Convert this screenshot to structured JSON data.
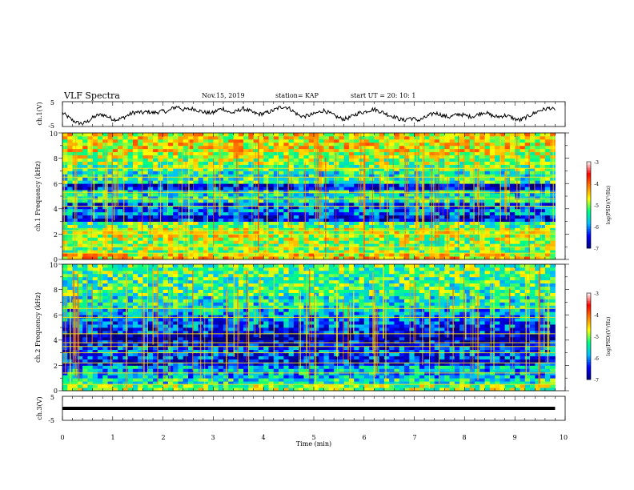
{
  "header": {
    "title": "VLF Spectra",
    "date": "Nov.15, 2019",
    "station": "station= KAP",
    "start": "start  UT  =   20: 10: 1"
  },
  "chart_data": [
    {
      "type": "line",
      "name": "ch.1 waveform",
      "ylabel": "ch.1(V)",
      "ylim": [
        -5,
        5
      ],
      "yticks": [
        "5",
        "-5"
      ],
      "xlim": [
        0,
        10
      ],
      "x": [
        0,
        0.1,
        0.2,
        0.3,
        0.4,
        0.5,
        0.6,
        0.7,
        0.8,
        0.9,
        1.0,
        1.1,
        1.2,
        1.3,
        1.4,
        1.5,
        1.6,
        1.7,
        1.8,
        1.9,
        2.0,
        2.1,
        2.2,
        2.3,
        2.4,
        2.5,
        2.6,
        2.7,
        2.8,
        2.9,
        3.0,
        3.1,
        3.2,
        3.3,
        3.4,
        3.5,
        3.6,
        3.7,
        3.8,
        3.9,
        4.0,
        4.1,
        4.2,
        4.3,
        4.4,
        4.5,
        4.6,
        4.7,
        4.8,
        4.9,
        5.0,
        5.1,
        5.2,
        5.3,
        5.4,
        5.5,
        5.6,
        5.7,
        5.8,
        5.9,
        6.0,
        6.1,
        6.2,
        6.3,
        6.4,
        6.5,
        6.6,
        6.7,
        6.8,
        6.9,
        7.0,
        7.1,
        7.2,
        7.3,
        7.4,
        7.5,
        7.6,
        7.7,
        7.8,
        7.9,
        8.0,
        8.1,
        8.2,
        8.3,
        8.4,
        8.5,
        8.6,
        8.7,
        8.8,
        8.9,
        9.0,
        9.1,
        9.2,
        9.3,
        9.4,
        9.5,
        9.6,
        9.7,
        9.8
      ],
      "y": [
        0.5,
        -1.0,
        -2.5,
        -3.5,
        -3.8,
        -3.0,
        -1.5,
        -0.5,
        -0.2,
        -1.0,
        -2.0,
        -2.2,
        -1.5,
        -0.5,
        0.5,
        0.8,
        0.5,
        1.0,
        0.5,
        0.8,
        1.2,
        1.0,
        2.5,
        3.0,
        1.8,
        2.0,
        2.2,
        1.5,
        0.8,
        0.5,
        0.5,
        1.8,
        2.2,
        0.8,
        0.5,
        1.5,
        2.2,
        1.5,
        0.5,
        0.0,
        0.2,
        0.8,
        1.5,
        2.5,
        3.0,
        2.5,
        1.0,
        -0.5,
        -1.0,
        -0.5,
        0.0,
        0.8,
        1.5,
        0.5,
        -0.5,
        -1.5,
        -2.0,
        -1.5,
        -0.5,
        0.5,
        0.8,
        1.5,
        2.0,
        1.2,
        0.5,
        -0.5,
        -1.0,
        -2.0,
        -2.5,
        -1.5,
        -2.0,
        -2.5,
        -1.5,
        -0.5,
        0.5,
        0.0,
        -0.8,
        -1.2,
        -0.5,
        0.0,
        -0.5,
        -1.0,
        -0.8,
        0.2,
        0.8,
        -0.2,
        -1.0,
        -1.0,
        -0.5,
        -1.0,
        -2.0,
        -2.5,
        -1.5,
        -0.5,
        0.5,
        1.5,
        2.0,
        2.5,
        1.5
      ]
    },
    {
      "type": "heatmap",
      "name": "ch.1 spectrogram",
      "ylabel": "ch.1 Frequency (kHz)",
      "ylim": [
        0,
        10
      ],
      "yticks": [
        "0",
        "2",
        "4",
        "6",
        "8",
        "10"
      ],
      "xlim": [
        0,
        10
      ],
      "colorbar": {
        "label": "log(PSD)(V²/Hz)",
        "range": [
          -7,
          -3
        ],
        "ticks": [
          "-3",
          "-4",
          "-5",
          "-6",
          "-7"
        ]
      },
      "freq_kHz": [
        0.0,
        0.5,
        1.0,
        1.5,
        2.0,
        2.5,
        3.0,
        3.5,
        4.0,
        4.5,
        5.0,
        5.5,
        6.0,
        6.5,
        7.0,
        7.5,
        8.0,
        8.5,
        9.0,
        9.5
      ],
      "mean_log_psd": [
        -4.5,
        -5.0,
        -5.0,
        -4.8,
        -4.8,
        -5.2,
        -6.5,
        -6.0,
        -6.2,
        -5.5,
        -5.6,
        -6.5,
        -5.4,
        -5.5,
        -5.2,
        -5.0,
        -4.8,
        -4.6,
        -4.6,
        -4.6
      ],
      "line_freqs_kHz": [
        0.5,
        1.0,
        2.0,
        2.3,
        4.2,
        4.8,
        5.3,
        6.5,
        7.2
      ]
    },
    {
      "type": "heatmap",
      "name": "ch.2 spectrogram",
      "ylabel": "ch.2 Frequency (kHz)",
      "ylim": [
        0,
        10
      ],
      "yticks": [
        "0",
        "2",
        "4",
        "6",
        "8",
        "10"
      ],
      "xlim": [
        0,
        10
      ],
      "colorbar": {
        "label": "log(PSD)(V²/Hz)",
        "range": [
          -7,
          -3
        ],
        "ticks": [
          "-3",
          "-4",
          "-5",
          "-6",
          "-7"
        ]
      },
      "freq_kHz": [
        0.0,
        0.5,
        1.0,
        1.5,
        2.0,
        2.5,
        3.0,
        3.5,
        4.0,
        4.5,
        5.0,
        5.5,
        6.0,
        6.5,
        7.0,
        7.5,
        8.0,
        8.5,
        9.0,
        9.5
      ],
      "mean_log_psd": [
        -5.0,
        -5.5,
        -5.8,
        -5.8,
        -6.5,
        -6.3,
        -6.2,
        -6.6,
        -6.8,
        -6.3,
        -6.2,
        -6.0,
        -5.8,
        -5.5,
        -5.5,
        -5.3,
        -5.3,
        -5.3,
        -5.2,
        -5.2
      ],
      "line_freqs_kHz": [
        0.5,
        1.4,
        2.2,
        3.0,
        3.5,
        3.8,
        4.5,
        5.8,
        6.5
      ]
    },
    {
      "type": "line",
      "name": "ch.3 waveform",
      "ylabel": "ch.3(V)",
      "ylim": [
        -5,
        5
      ],
      "yticks": [
        "5",
        "-5"
      ],
      "xlim": [
        0,
        10
      ],
      "x": [
        0,
        9.8
      ],
      "y": [
        0,
        0
      ]
    }
  ],
  "xaxis": {
    "label": "Time (min)",
    "ticks": [
      "0",
      "1",
      "2",
      "3",
      "4",
      "5",
      "6",
      "7",
      "8",
      "9",
      "10"
    ]
  },
  "colors": {
    "colormap": [
      "#00007f",
      "#0000ff",
      "#00bfff",
      "#00ff80",
      "#ffff00",
      "#ff8000",
      "#ff0000",
      "#ffffff"
    ]
  }
}
